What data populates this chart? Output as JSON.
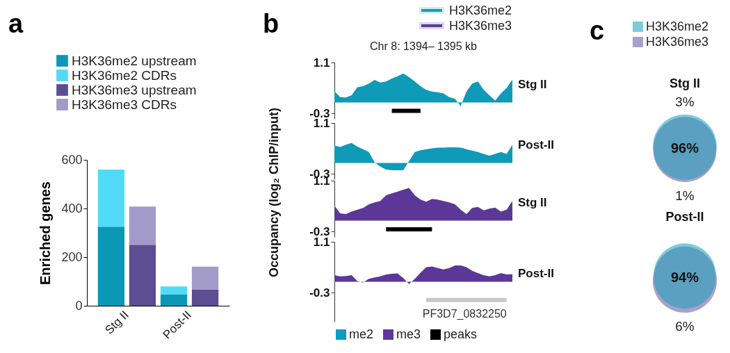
{
  "chart_data": [
    {
      "type": "bar",
      "stacked": true,
      "annotations": [
        "a"
      ],
      "categories": [
        "Stg II",
        null,
        "Post-II",
        null
      ],
      "ylabel": "Enriched genes",
      "ylim": [
        0,
        600
      ],
      "yticks": [
        0,
        200,
        400,
        600
      ],
      "legend": "top",
      "series": [
        {
          "name": "H3K36me2 upstream",
          "color": "#0b97b6",
          "values": [
            325,
            null,
            47,
            null
          ]
        },
        {
          "name": "H3K36me2 CDRs",
          "color": "#52dbf6",
          "values": [
            235,
            null,
            32,
            null
          ]
        },
        {
          "name": "H3K36me3 upstream",
          "color": "#5b4e93",
          "values": [
            null,
            251,
            null,
            67
          ]
        },
        {
          "name": "H3K36me3 CDRs",
          "color": "#a29ac8",
          "values": [
            null,
            157,
            null,
            94
          ]
        }
      ]
    },
    {
      "type": "other",
      "annotations": [
        "b"
      ],
      "categories": [
        "H3K36me2",
        "H3K36me3"
      ],
      "colors": [
        "#1a9bbf",
        "#5b3a99"
      ]
    },
    {
      "type": "area",
      "title": "Chr 8: 1394– 1395 kb",
      "ylabel": "Occupancy (log₂ ChIP/input)",
      "y2label": "Stg II",
      "ylim": [
        -0.45,
        1.1
      ],
      "yticks": [
        -0.3,
        1.1
      ],
      "categories": [
        null,
        null,
        null,
        null,
        null,
        null,
        null,
        null,
        null,
        null,
        null,
        null,
        null,
        null,
        null,
        null,
        null,
        null,
        null,
        null,
        null,
        null,
        null,
        null,
        null,
        null,
        null,
        null,
        null,
        null,
        null,
        null
      ],
      "series": [
        {
          "color": "#0f9ab8",
          "values": [
            0.31,
            0.15,
            0.14,
            0.2,
            0.42,
            0.45,
            0.52,
            0.62,
            0.55,
            0.58,
            0.66,
            0.72,
            0.8,
            0.7,
            0.58,
            0.45,
            0.35,
            0.3,
            0.28,
            0.25,
            0.15,
            0.1,
            -0.1,
            0.3,
            0.52,
            0.58,
            0.35,
            0.2,
            0.05,
            0.25,
            0.4,
            0.63
          ]
        },
        {
          "type": "line",
          "color": "#000000",
          "values": [
            null,
            null,
            null,
            null,
            null,
            null,
            null,
            null,
            null,
            null,
            -0.23,
            -0.23,
            -0.23,
            -0.23,
            -0.23,
            -0.23,
            null,
            null,
            null,
            null,
            null,
            null,
            null,
            null,
            null,
            null,
            null,
            null,
            null,
            null,
            null,
            null
          ]
        }
      ]
    },
    {
      "type": "area",
      "y2label": "Post-II",
      "ylim": [
        -0.45,
        1.1
      ],
      "yticks": [
        -0.3,
        1.1
      ],
      "categories": [
        null,
        null,
        null,
        null,
        null,
        null,
        null,
        null,
        null,
        null,
        null,
        null,
        null,
        null,
        null,
        null,
        null,
        null,
        null,
        null,
        null,
        null,
        null,
        null,
        null,
        null,
        null,
        null,
        null,
        null,
        null,
        null
      ],
      "series": [
        {
          "color": "#0f9ab8",
          "values": [
            0.48,
            0.44,
            0.5,
            0.55,
            0.45,
            0.38,
            0.3,
            0.02,
            -0.1,
            -0.18,
            -0.2,
            -0.2,
            -0.2,
            0.05,
            0.3,
            0.35,
            0.38,
            0.4,
            0.42,
            0.42,
            0.43,
            0.43,
            0.42,
            0.38,
            0.34,
            0.3,
            0.25,
            0.2,
            0.25,
            0.3,
            0.25,
            0.5
          ]
        }
      ]
    },
    {
      "type": "area",
      "y2label": "Stg II",
      "ylim": [
        -0.45,
        1.1
      ],
      "yticks": [
        -0.3,
        1.1
      ],
      "categories": [
        null,
        null,
        null,
        null,
        null,
        null,
        null,
        null,
        null,
        null,
        null,
        null,
        null,
        null,
        null,
        null,
        null,
        null,
        null,
        null,
        null,
        null,
        null,
        null,
        null,
        null,
        null,
        null,
        null,
        null,
        null,
        null
      ],
      "series": [
        {
          "color": "#5b3898",
          "values": [
            0.41,
            0.2,
            0.18,
            0.25,
            0.3,
            0.35,
            0.45,
            0.5,
            0.54,
            0.7,
            0.75,
            0.8,
            0.85,
            0.9,
            0.7,
            0.58,
            0.52,
            0.6,
            0.58,
            0.54,
            0.5,
            0.45,
            0.3,
            0.18,
            0.35,
            0.38,
            0.28,
            0.33,
            0.36,
            0.25,
            0.3,
            0.54
          ]
        },
        {
          "type": "line",
          "color": "#000000",
          "values": [
            null,
            null,
            null,
            null,
            null,
            null,
            null,
            null,
            null,
            -0.24,
            -0.24,
            -0.24,
            -0.24,
            -0.24,
            -0.24,
            -0.24,
            -0.24,
            -0.24,
            null,
            null,
            null,
            null,
            null,
            null,
            null,
            null,
            null,
            null,
            null,
            null,
            null,
            null
          ]
        }
      ]
    },
    {
      "type": "area",
      "y2label": "Post-II",
      "ylim": [
        -1.1,
        1.1
      ],
      "yticks": [
        -0.3,
        1.1
      ],
      "categories": [
        null,
        null,
        null,
        null,
        null,
        null,
        null,
        null,
        null,
        null,
        null,
        null,
        null,
        null,
        null,
        null,
        null,
        null,
        null,
        null,
        null,
        null,
        null,
        null,
        null,
        null,
        null,
        null,
        null,
        null,
        null,
        null
      ],
      "series": [
        {
          "color": "#5b3898",
          "values": [
            0.18,
            0.15,
            0.16,
            0.18,
            0.02,
            -0.02,
            0.08,
            0.12,
            0.15,
            0.2,
            0.22,
            0.23,
            0.1,
            -0.06,
            0.08,
            0.25,
            0.4,
            0.42,
            0.38,
            0.34,
            0.38,
            0.45,
            0.45,
            0.4,
            0.3,
            0.24,
            0.18,
            0.15,
            0.18,
            0.24,
            0.2,
            0.21
          ]
        },
        {
          "type": "line",
          "name": "PF3D7_0832250",
          "color": "#c8c8c8",
          "values": [
            null,
            null,
            null,
            null,
            null,
            null,
            null,
            null,
            null,
            null,
            null,
            null,
            null,
            null,
            null,
            null,
            -0.5,
            -0.5,
            -0.5,
            -0.5,
            -0.5,
            -0.5,
            -0.5,
            -0.5,
            -0.5,
            -0.5,
            -0.5,
            -0.5,
            -0.5,
            -0.5,
            -0.5,
            null
          ]
        }
      ]
    },
    {
      "type": "other",
      "categories": [
        "me2",
        "me3",
        "peaks"
      ],
      "colors": [
        "#0f9bc0",
        "#5a3a9a",
        "#000000"
      ]
    },
    {
      "type": "other",
      "annotations": [
        "c"
      ],
      "categories": [
        "H3K36me2",
        "H3K36me3"
      ],
      "colors": [
        "#7ecbd9",
        "#a7a0cc"
      ]
    },
    {
      "type": "other",
      "title": "Stg II",
      "categories": [
        null,
        null,
        null
      ],
      "values": [
        3,
        96,
        1
      ],
      "value_labels": [
        "3%",
        "96%",
        "1%"
      ],
      "colors": [
        "#7ecbd9",
        "#5b9fc1",
        "#a9a1cc"
      ]
    },
    {
      "type": "other",
      "title": "Post-II",
      "categories": [
        null,
        null,
        null
      ],
      "values": [
        null,
        94,
        6
      ],
      "value_labels": [
        null,
        "94%",
        "6%"
      ],
      "colors": [
        "#7ecbd9",
        "#5b9fc1",
        "#a9a1cc"
      ]
    }
  ]
}
